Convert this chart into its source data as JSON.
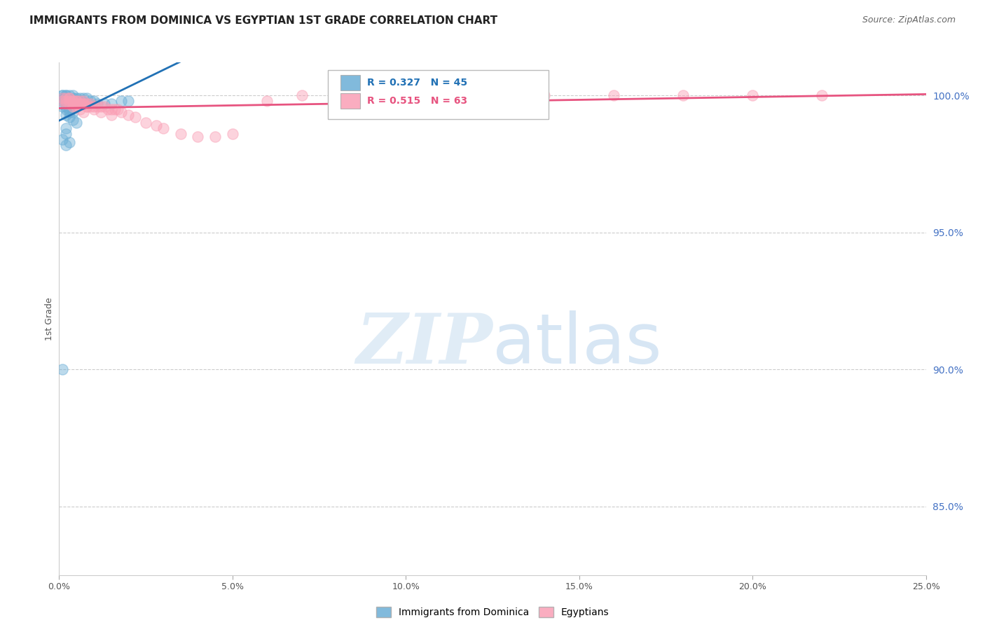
{
  "title": "IMMIGRANTS FROM DOMINICA VS EGYPTIAN 1ST GRADE CORRELATION CHART",
  "source": "Source: ZipAtlas.com",
  "ylabel": "1st Grade",
  "ylabel_right_labels": [
    "100.0%",
    "95.0%",
    "90.0%",
    "85.0%"
  ],
  "ylabel_right_positions": [
    1.0,
    0.95,
    0.9,
    0.85
  ],
  "x_min": 0.0,
  "x_max": 0.25,
  "y_min": 0.825,
  "y_max": 1.012,
  "grid_color": "#cccccc",
  "background_color": "#ffffff",
  "dominica_color": "#6baed6",
  "egyptian_color": "#fa9fb5",
  "dominica_line_color": "#2171b5",
  "egyptian_line_color": "#e75480",
  "legend_label_dominica": "Immigrants from Dominica",
  "legend_label_egyptian": "Egyptians",
  "R_dominica": 0.327,
  "N_dominica": 45,
  "R_egyptian": 0.515,
  "N_egyptian": 63,
  "marker_size": 120,
  "marker_alpha": 0.45,
  "right_axis_color": "#4472c4",
  "dominica_x": [
    0.001,
    0.001,
    0.001,
    0.001,
    0.002,
    0.002,
    0.002,
    0.002,
    0.002,
    0.003,
    0.003,
    0.003,
    0.003,
    0.004,
    0.004,
    0.004,
    0.005,
    0.005,
    0.006,
    0.006,
    0.007,
    0.008,
    0.009,
    0.01,
    0.011,
    0.013,
    0.015,
    0.018,
    0.02,
    0.001,
    0.002,
    0.002,
    0.003,
    0.003,
    0.004,
    0.002,
    0.003,
    0.004,
    0.005,
    0.002,
    0.002,
    0.001,
    0.002,
    0.001,
    0.003
  ],
  "dominica_y": [
    1.0,
    1.0,
    0.999,
    0.998,
    1.0,
    1.0,
    0.999,
    0.998,
    0.997,
    1.0,
    0.999,
    0.998,
    0.997,
    1.0,
    0.999,
    0.998,
    0.999,
    0.998,
    0.999,
    0.998,
    0.999,
    0.999,
    0.998,
    0.998,
    0.997,
    0.997,
    0.997,
    0.998,
    0.998,
    0.996,
    0.996,
    0.995,
    0.995,
    0.994,
    0.994,
    0.993,
    0.992,
    0.991,
    0.99,
    0.988,
    0.986,
    0.984,
    0.982,
    0.9,
    0.983
  ],
  "egyptian_x": [
    0.001,
    0.001,
    0.002,
    0.002,
    0.002,
    0.003,
    0.003,
    0.003,
    0.004,
    0.004,
    0.005,
    0.005,
    0.006,
    0.006,
    0.007,
    0.007,
    0.008,
    0.008,
    0.009,
    0.01,
    0.011,
    0.012,
    0.013,
    0.014,
    0.015,
    0.016,
    0.017,
    0.018,
    0.02,
    0.022,
    0.025,
    0.028,
    0.03,
    0.035,
    0.04,
    0.045,
    0.05,
    0.06,
    0.07,
    0.08,
    0.09,
    0.1,
    0.11,
    0.12,
    0.14,
    0.16,
    0.18,
    0.2,
    0.22,
    0.003,
    0.004,
    0.005,
    0.006,
    0.007,
    0.008,
    0.009,
    0.01,
    0.012,
    0.015,
    0.004,
    0.005,
    0.006,
    0.007
  ],
  "egyptian_y": [
    0.999,
    0.998,
    0.999,
    0.998,
    0.997,
    0.999,
    0.998,
    0.997,
    0.998,
    0.997,
    0.998,
    0.997,
    0.998,
    0.997,
    0.998,
    0.997,
    0.997,
    0.996,
    0.997,
    0.996,
    0.996,
    0.996,
    0.996,
    0.995,
    0.995,
    0.995,
    0.995,
    0.994,
    0.993,
    0.992,
    0.99,
    0.989,
    0.988,
    0.986,
    0.985,
    0.985,
    0.986,
    0.998,
    1.0,
    1.0,
    1.0,
    1.0,
    1.0,
    1.0,
    1.0,
    1.0,
    1.0,
    1.0,
    1.0,
    0.999,
    0.998,
    0.998,
    0.997,
    0.997,
    0.996,
    0.996,
    0.995,
    0.994,
    0.993,
    0.996,
    0.996,
    0.995,
    0.994
  ]
}
